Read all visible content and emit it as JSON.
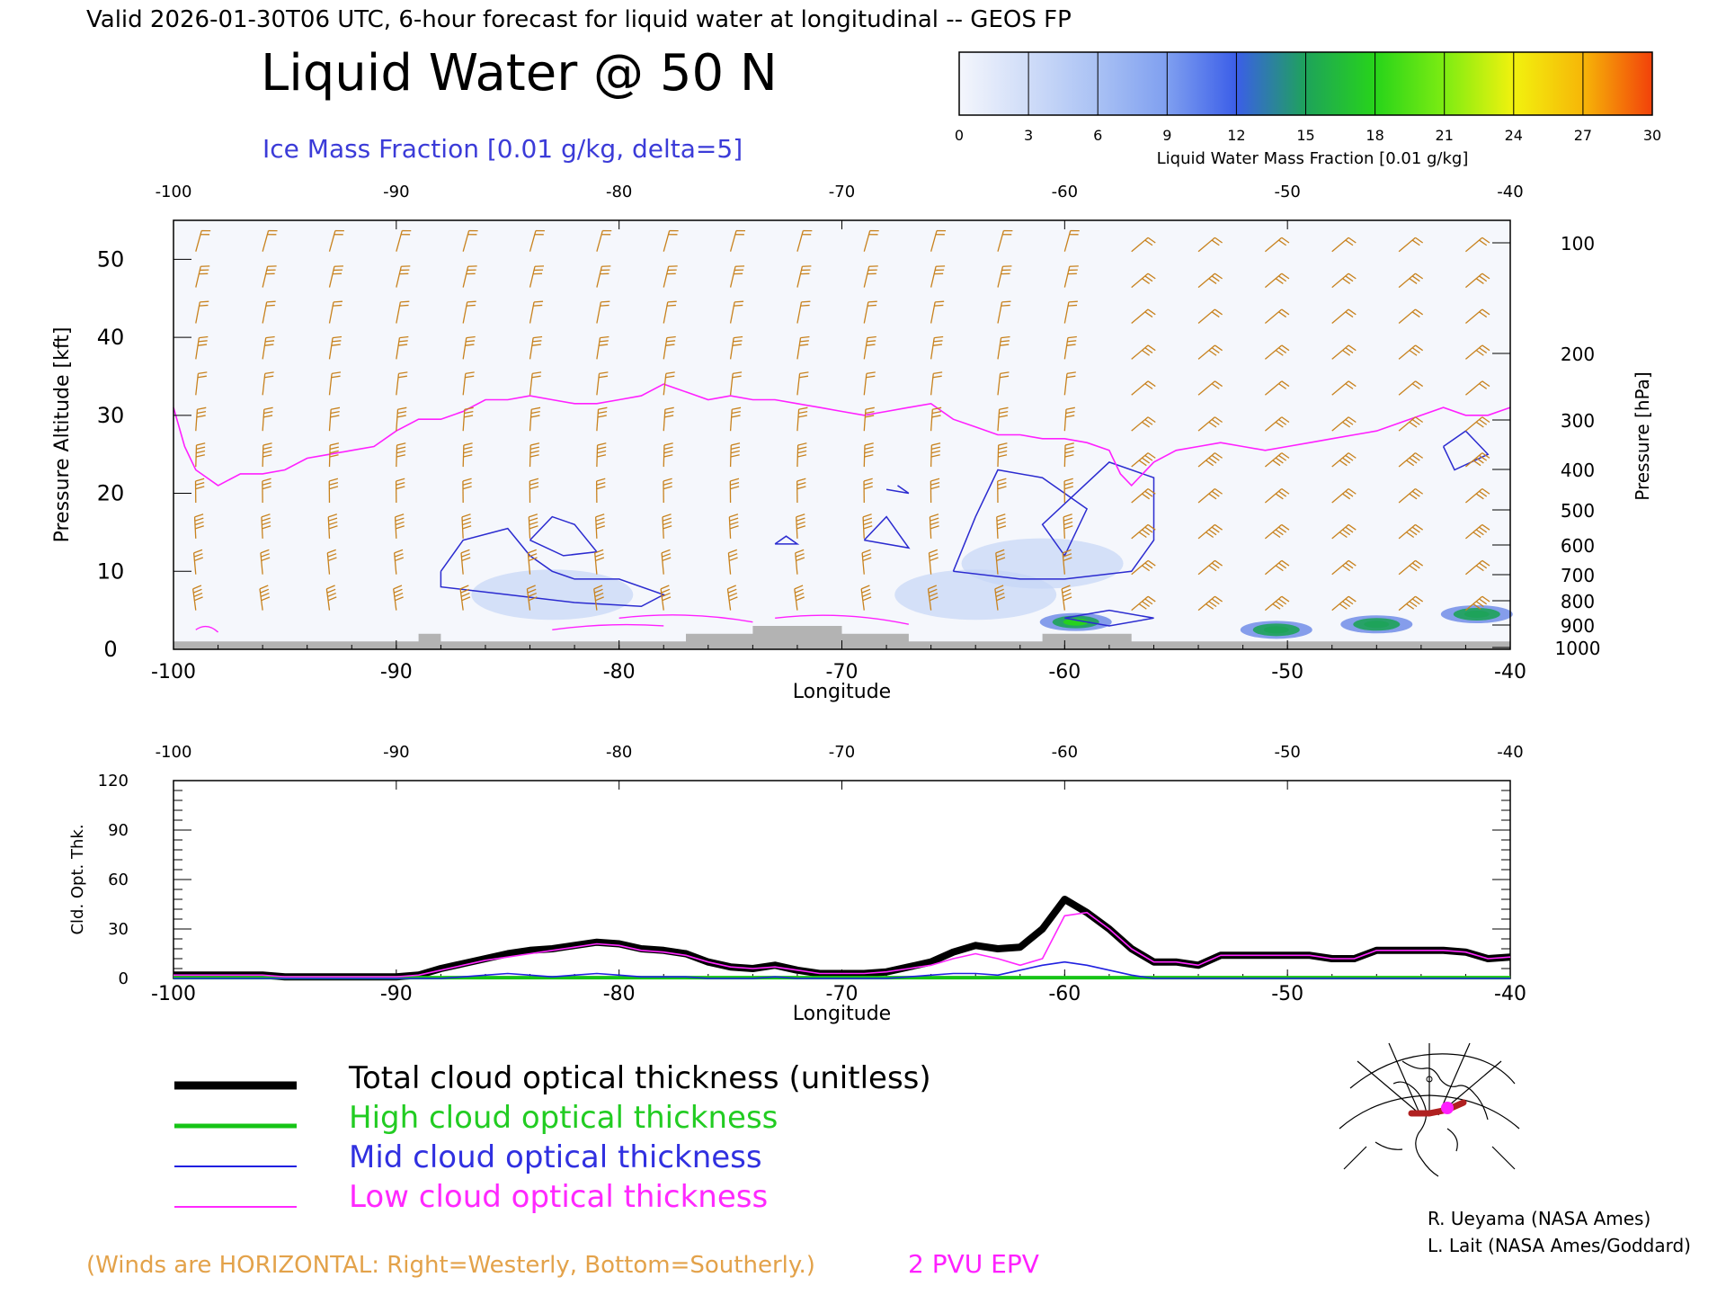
{
  "header": {
    "valid_line": "Valid 2026-01-30T06 UTC, 6-hour forecast for liquid water at longitudinal -- GEOS FP",
    "main_title": "Liquid Water @ 50 N",
    "subtitle": "Ice Mass Fraction [0.01 g/kg, delta=5]"
  },
  "colorbar": {
    "ticks": [
      "0",
      "3",
      "6",
      "9",
      "12",
      "15",
      "18",
      "21",
      "24",
      "27",
      "30"
    ],
    "label": "Liquid Water Mass Fraction [0.01 g/kg]",
    "colors": [
      "#f4f6fc",
      "#cfdcf8",
      "#a9c1f4",
      "#7f9ff0",
      "#3b5ee8",
      "#1ea35a",
      "#27d41a",
      "#7dec12",
      "#f2f20e",
      "#f6b608",
      "#f2410a"
    ]
  },
  "colors": {
    "wind": "#c8821e",
    "ice_contour": "#2b2bd0",
    "epv": "#ff20ff",
    "terrain": "#b3b3b3",
    "total": "#000000",
    "high": "#16c416",
    "mid": "#2020e0",
    "low": "#ff28ff"
  },
  "chart_data": [
    {
      "type": "heatmap",
      "title": "Liquid Water @ 50 N",
      "xlabel": "Longitude",
      "ylabel": "Pressure Altitude [kft]",
      "ylabel_right": "Pressure [hPa]",
      "xlim": [
        -100,
        -40
      ],
      "ylim": [
        0,
        55
      ],
      "x_ticks": [
        "-100",
        "-90",
        "-80",
        "-70",
        "-60",
        "-50",
        "-40"
      ],
      "x_ticks_top": [
        "-100",
        "-90",
        "-80",
        "-70",
        "-60",
        "-50",
        "-40"
      ],
      "y_ticks": [
        "0",
        "10",
        "20",
        "30",
        "40",
        "50"
      ],
      "pressure_ticks": [
        "100",
        "200",
        "300",
        "400",
        "500",
        "600",
        "700",
        "800",
        "900",
        "1000"
      ],
      "epv_2pvu_kft": {
        "x": [
          -100,
          -99.5,
          -99,
          -98,
          -97,
          -96,
          -95,
          -94,
          -93,
          -92,
          -91,
          -90,
          -89,
          -88,
          -87,
          -86,
          -85,
          -84,
          -83,
          -82,
          -81,
          -80,
          -79,
          -78,
          -77,
          -76,
          -75,
          -74,
          -73,
          -72,
          -71,
          -70,
          -69,
          -68,
          -67,
          -66,
          -65,
          -64,
          -63,
          -62,
          -61,
          -60,
          -59,
          -58,
          -57.5,
          -57,
          -56,
          -55,
          -54,
          -53,
          -52,
          -51,
          -50,
          -49,
          -48,
          -47,
          -46,
          -45,
          -44,
          -43,
          -42,
          -41,
          -40
        ],
        "y": [
          31,
          26,
          23,
          21,
          22.5,
          22.5,
          23,
          24.5,
          25,
          25.5,
          26,
          28,
          29.5,
          29.5,
          30.5,
          32,
          32,
          32.5,
          32,
          31.5,
          31.5,
          32,
          32.5,
          34,
          33,
          32,
          32.5,
          32,
          32,
          31.5,
          31,
          30.5,
          30,
          30.5,
          31,
          31.5,
          29.5,
          28.5,
          27.5,
          27.5,
          27,
          27,
          26.5,
          25.5,
          22.5,
          21,
          24,
          25.5,
          26,
          26.5,
          26,
          25.5,
          26,
          26.5,
          27,
          27.5,
          28,
          29,
          30,
          31,
          30,
          30,
          31
        ]
      },
      "liquid_water_blobs": [
        {
          "lon": -59.5,
          "kft": 3.5,
          "value": 17
        },
        {
          "lon": -50.5,
          "kft": 2.5,
          "value": 15
        },
        {
          "lon": -46,
          "kft": 3.2,
          "value": 14
        },
        {
          "lon": -41.5,
          "kft": 4.5,
          "value": 16
        },
        {
          "lon": -64,
          "kft": 7,
          "value": 7
        },
        {
          "lon": -83,
          "kft": 7,
          "value": 5
        },
        {
          "lon": -61,
          "kft": 11,
          "value": 4
        }
      ]
    },
    {
      "type": "line",
      "xlabel": "Longitude",
      "ylabel": "Cld. Opt. Thk.",
      "xlim": [
        -100,
        -40
      ],
      "ylim": [
        0,
        120
      ],
      "x_ticks": [
        "-100",
        "-90",
        "-80",
        "-70",
        "-60",
        "-50",
        "-40"
      ],
      "x_ticks_top": [
        "-100",
        "-90",
        "-80",
        "-70",
        "-60",
        "-50",
        "-40"
      ],
      "y_ticks": [
        "0",
        "30",
        "60",
        "90",
        "120"
      ],
      "x": [
        -100,
        -99,
        -98,
        -97,
        -96,
        -95,
        -94,
        -93,
        -92,
        -91,
        -90,
        -89,
        -88,
        -87,
        -86,
        -85,
        -84,
        -83,
        -82,
        -81,
        -80,
        -79,
        -78,
        -77,
        -76,
        -75,
        -74,
        -73,
        -72,
        -71,
        -70,
        -69,
        -68,
        -67,
        -66,
        -65,
        -64,
        -63,
        -62,
        -61,
        -60,
        -59,
        -58,
        -57,
        -56,
        -55,
        -54,
        -53,
        -52,
        -51,
        -50,
        -49,
        -48,
        -47,
        -46,
        -45,
        -44,
        -43,
        -42,
        -41,
        -40
      ],
      "series": [
        {
          "name": "Total cloud optical thickness (unitless)",
          "values": [
            2,
            2,
            2,
            2,
            2,
            1,
            1,
            1,
            1,
            1,
            1,
            2,
            6,
            9,
            12,
            15,
            17,
            18,
            20,
            22,
            21,
            18,
            17,
            15,
            10,
            7,
            6,
            8,
            5,
            3,
            3,
            3,
            4,
            7,
            10,
            16,
            20,
            18,
            19,
            30,
            48,
            40,
            30,
            18,
            10,
            10,
            8,
            14,
            14,
            14,
            14,
            14,
            12,
            12,
            17,
            17,
            17,
            17,
            16,
            12,
            13
          ]
        },
        {
          "name": "High cloud optical thickness",
          "values": [
            0.5,
            0.5,
            0.5,
            0.5,
            0.5,
            0.5,
            0.5,
            0.5,
            0.5,
            0.5,
            0.5,
            0.5,
            0.5,
            0.5,
            0.5,
            0.5,
            0.5,
            0.5,
            0.5,
            0.5,
            0.5,
            0.5,
            0.5,
            0.5,
            0.5,
            0.5,
            0.5,
            0.5,
            0.5,
            0.5,
            0.5,
            0.5,
            0.5,
            0.5,
            0.5,
            0.5,
            0.5,
            0.5,
            0.5,
            0.5,
            0.5,
            0.5,
            0.5,
            0.5,
            0.5,
            0.5,
            0.5,
            0.5,
            0.5,
            0.5,
            0.5,
            0.5,
            0.5,
            0.5,
            0.5,
            0.5,
            0.5,
            0.5,
            0.5,
            0.5,
            0.5
          ]
        },
        {
          "name": "Mid cloud optical thickness",
          "values": [
            0,
            0,
            0,
            0,
            0,
            0,
            0,
            0,
            0,
            0,
            0,
            0,
            0,
            1,
            2,
            3,
            2,
            1,
            2,
            3,
            2,
            1,
            1,
            1,
            0,
            0,
            0,
            1,
            0,
            0,
            0,
            0,
            0,
            1,
            2,
            3,
            3,
            2,
            5,
            8,
            10,
            8,
            5,
            2,
            0,
            0,
            0,
            0,
            0,
            0,
            0,
            0,
            0,
            0,
            0,
            0,
            0,
            0,
            0,
            0,
            0
          ]
        },
        {
          "name": "Low cloud optical thickness",
          "values": [
            2,
            2,
            2,
            2,
            2,
            1,
            1,
            1,
            1,
            1,
            1,
            2,
            5,
            8,
            11,
            13,
            15,
            17,
            19,
            21,
            20,
            17,
            16,
            14,
            10,
            7,
            6,
            7,
            5,
            3,
            3,
            3,
            4,
            6,
            8,
            12,
            15,
            12,
            8,
            12,
            38,
            40,
            30,
            18,
            10,
            10,
            8,
            14,
            14,
            14,
            14,
            14,
            12,
            12,
            17,
            17,
            17,
            17,
            16,
            12,
            13
          ]
        }
      ]
    }
  ],
  "legend": {
    "total": "Total cloud optical thickness (unitless)",
    "high": "High cloud optical thickness",
    "mid": "Mid cloud optical thickness",
    "low": "Low cloud optical thickness"
  },
  "footer": {
    "winds_note": "(Winds are HORIZONTAL: Right=Westerly, Bottom=Southerly.)",
    "epv_label": "2 PVU EPV",
    "credit1": "R. Ueyama (NASA Ames)",
    "credit2": "L. Lait (NASA Ames/Goddard)"
  }
}
